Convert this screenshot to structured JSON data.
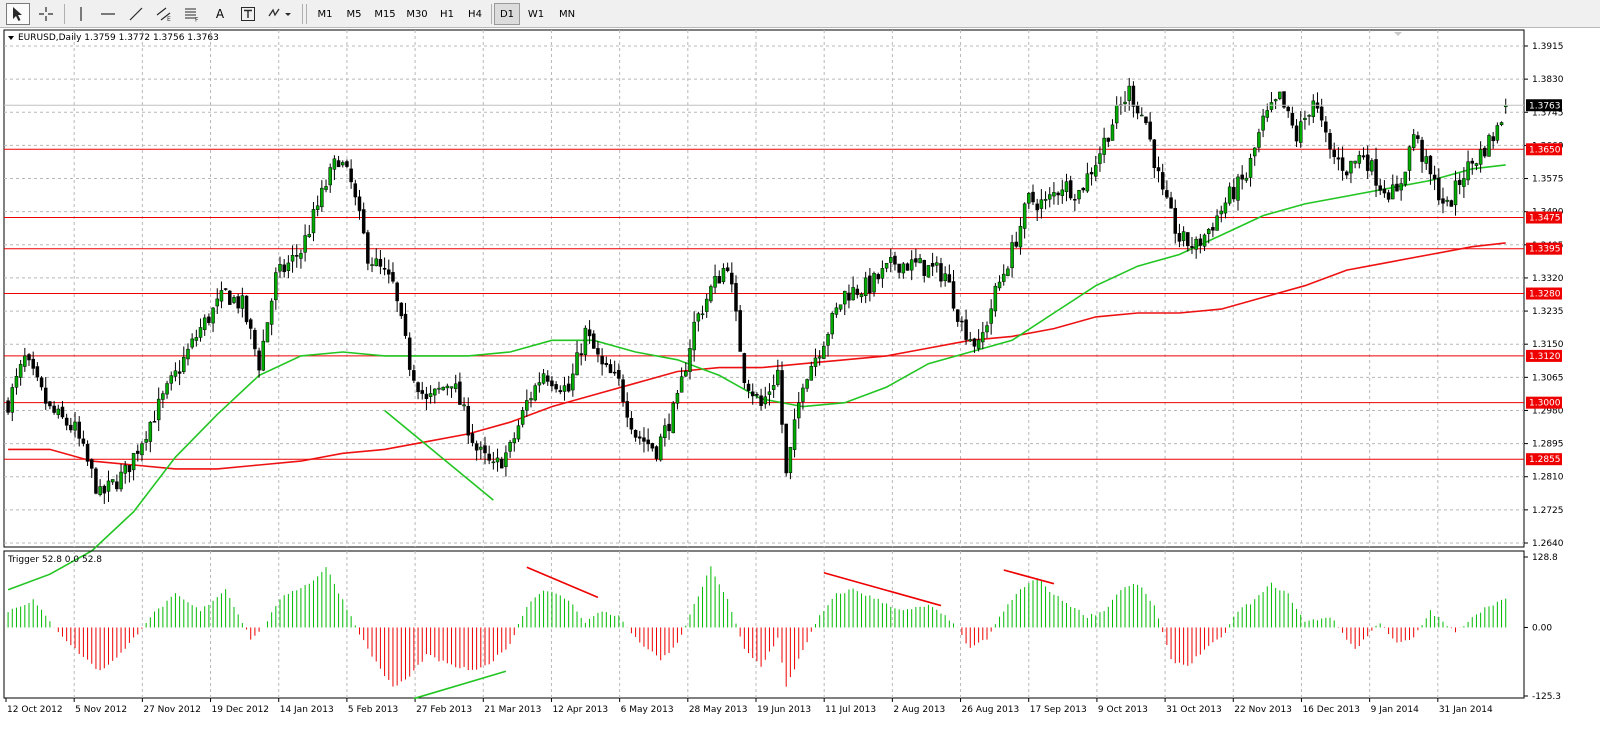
{
  "toolbar": {
    "tools": [
      {
        "name": "cursor-tool",
        "icon": "arrow-cursor-icon"
      },
      {
        "name": "crosshair-tool",
        "icon": "crosshair-icon"
      },
      {
        "name": "vertical-line-tool",
        "icon": "vertical-line-icon"
      },
      {
        "name": "horizontal-line-tool",
        "icon": "horizontal-line-icon"
      },
      {
        "name": "trendline-tool",
        "icon": "trendline-icon"
      },
      {
        "name": "equidistant-channel-tool",
        "icon": "channel-icon"
      },
      {
        "name": "fibonacci-tool",
        "icon": "fibonacci-icon"
      },
      {
        "name": "text-tool",
        "icon": "text-icon",
        "label": "A"
      },
      {
        "name": "text-label-tool",
        "icon": "text-label-icon"
      },
      {
        "name": "arrows-tool",
        "icon": "arrows-dropdown-icon"
      }
    ],
    "timeframes": [
      "M1",
      "M5",
      "M15",
      "M30",
      "H1",
      "H4",
      "D1",
      "W1",
      "MN"
    ],
    "active_timeframe": "D1"
  },
  "chart_data": [
    {
      "type": "candlestick",
      "symbol_info": "EURUSD,Daily  1.3759 1.3772 1.3756 1.3763",
      "ylim": [
        1.264,
        1.3915
      ],
      "y_ticks": [
        "1.3915",
        "1.3830",
        "1.3745",
        "1.3660",
        "1.3575",
        "1.3490",
        "1.3405",
        "1.3320",
        "1.3235",
        "1.3150",
        "1.3065",
        "1.2980",
        "1.2895",
        "1.2810",
        "1.2725",
        "1.2640"
      ],
      "x_ticks": [
        "12 Oct 2012",
        "5 Nov 2012",
        "27 Nov 2012",
        "19 Dec 2012",
        "14 Jan 2013",
        "5 Feb 2013",
        "27 Feb 2013",
        "21 Mar 2013",
        "12 Apr 2013",
        "6 May 2013",
        "28 May 2013",
        "19 Jun 2013",
        "11 Jul 2013",
        "2 Aug 2013",
        "26 Aug 2013",
        "17 Sep 2013",
        "9 Oct 2013",
        "31 Oct 2013",
        "22 Nov 2013",
        "16 Dec 2013",
        "9 Jan 2014",
        "31 Jan 2014"
      ],
      "current_price": "1.3763",
      "horizontal_levels": [
        "1.3650",
        "1.3475",
        "1.3395",
        "1.3280",
        "1.3120",
        "1.3000",
        "1.2855"
      ],
      "level_color": "#ee0000",
      "bull_color": "#00aa00",
      "bear_color": "#000000",
      "price_anchors": [
        [
          0,
          1.3
        ],
        [
          4,
          1.311
        ],
        [
          10,
          1.298
        ],
        [
          16,
          1.293
        ],
        [
          22,
          1.276
        ],
        [
          28,
          1.282
        ],
        [
          34,
          1.295
        ],
        [
          40,
          1.307
        ],
        [
          46,
          1.319
        ],
        [
          52,
          1.328
        ],
        [
          56,
          1.325
        ],
        [
          60,
          1.31
        ],
        [
          64,
          1.332
        ],
        [
          70,
          1.339
        ],
        [
          76,
          1.356
        ],
        [
          79,
          1.363
        ],
        [
          82,
          1.356
        ],
        [
          86,
          1.338
        ],
        [
          92,
          1.33
        ],
        [
          96,
          1.31
        ],
        [
          100,
          1.3
        ],
        [
          106,
          1.306
        ],
        [
          112,
          1.288
        ],
        [
          116,
          1.283
        ],
        [
          120,
          1.288
        ],
        [
          124,
          1.3
        ],
        [
          128,
          1.308
        ],
        [
          134,
          1.303
        ],
        [
          138,
          1.318
        ],
        [
          142,
          1.309
        ],
        [
          146,
          1.305
        ],
        [
          150,
          1.292
        ],
        [
          155,
          1.288
        ],
        [
          160,
          1.3
        ],
        [
          164,
          1.32
        ],
        [
          168,
          1.329
        ],
        [
          172,
          1.336
        ],
        [
          176,
          1.307
        ],
        [
          180,
          1.299
        ],
        [
          184,
          1.308
        ],
        [
          186,
          1.281
        ],
        [
          190,
          1.306
        ],
        [
          194,
          1.314
        ],
        [
          200,
          1.328
        ],
        [
          206,
          1.33
        ],
        [
          212,
          1.336
        ],
        [
          218,
          1.335
        ],
        [
          224,
          1.333
        ],
        [
          228,
          1.32
        ],
        [
          232,
          1.314
        ],
        [
          236,
          1.328
        ],
        [
          240,
          1.339
        ],
        [
          244,
          1.352
        ],
        [
          248,
          1.351
        ],
        [
          252,
          1.356
        ],
        [
          256,
          1.354
        ],
        [
          260,
          1.362
        ],
        [
          264,
          1.372
        ],
        [
          268,
          1.38
        ],
        [
          272,
          1.372
        ],
        [
          276,
          1.353
        ],
        [
          280,
          1.342
        ],
        [
          284,
          1.34
        ],
        [
          288,
          1.346
        ],
        [
          292,
          1.353
        ],
        [
          296,
          1.358
        ],
        [
          300,
          1.372
        ],
        [
          304,
          1.378
        ],
        [
          308,
          1.368
        ],
        [
          312,
          1.378
        ],
        [
          316,
          1.364
        ],
        [
          320,
          1.36
        ],
        [
          324,
          1.364
        ],
        [
          328,
          1.356
        ],
        [
          332,
          1.353
        ],
        [
          336,
          1.369
        ],
        [
          340,
          1.358
        ],
        [
          344,
          1.35
        ],
        [
          348,
          1.359
        ],
        [
          352,
          1.364
        ],
        [
          356,
          1.37
        ],
        [
          358,
          1.3763
        ]
      ],
      "ma_fast": {
        "color": "#22c522",
        "points": [
          [
            0,
            1.252
          ],
          [
            10,
            1.256
          ],
          [
            20,
            1.262
          ],
          [
            30,
            1.272
          ],
          [
            40,
            1.286
          ],
          [
            50,
            1.297
          ],
          [
            60,
            1.307
          ],
          [
            70,
            1.312
          ],
          [
            80,
            1.313
          ],
          [
            90,
            1.312
          ],
          [
            100,
            1.312
          ],
          [
            110,
            1.312
          ],
          [
            120,
            1.313
          ],
          [
            130,
            1.316
          ],
          [
            140,
            1.316
          ],
          [
            150,
            1.313
          ],
          [
            160,
            1.311
          ],
          [
            170,
            1.307
          ],
          [
            180,
            1.301
          ],
          [
            190,
            1.299
          ],
          [
            200,
            1.3
          ],
          [
            210,
            1.304
          ],
          [
            220,
            1.31
          ],
          [
            230,
            1.313
          ],
          [
            240,
            1.316
          ],
          [
            250,
            1.323
          ],
          [
            260,
            1.33
          ],
          [
            270,
            1.335
          ],
          [
            280,
            1.338
          ],
          [
            290,
            1.343
          ],
          [
            300,
            1.348
          ],
          [
            310,
            1.351
          ],
          [
            320,
            1.353
          ],
          [
            330,
            1.355
          ],
          [
            340,
            1.357
          ],
          [
            350,
            1.36
          ],
          [
            358,
            1.361
          ]
        ]
      },
      "ma_slow": {
        "color": "#ee1111",
        "points": [
          [
            0,
            1.288
          ],
          [
            10,
            1.288
          ],
          [
            20,
            1.285
          ],
          [
            30,
            1.284
          ],
          [
            40,
            1.283
          ],
          [
            50,
            1.283
          ],
          [
            60,
            1.284
          ],
          [
            70,
            1.285
          ],
          [
            80,
            1.287
          ],
          [
            90,
            1.288
          ],
          [
            100,
            1.29
          ],
          [
            110,
            1.292
          ],
          [
            120,
            1.295
          ],
          [
            130,
            1.299
          ],
          [
            140,
            1.302
          ],
          [
            150,
            1.305
          ],
          [
            160,
            1.308
          ],
          [
            170,
            1.309
          ],
          [
            180,
            1.309
          ],
          [
            190,
            1.31
          ],
          [
            200,
            1.311
          ],
          [
            210,
            1.312
          ],
          [
            220,
            1.314
          ],
          [
            230,
            1.316
          ],
          [
            240,
            1.317
          ],
          [
            250,
            1.319
          ],
          [
            260,
            1.322
          ],
          [
            270,
            1.323
          ],
          [
            280,
            1.323
          ],
          [
            290,
            1.324
          ],
          [
            300,
            1.327
          ],
          [
            310,
            1.33
          ],
          [
            320,
            1.334
          ],
          [
            330,
            1.336
          ],
          [
            340,
            1.338
          ],
          [
            350,
            1.34
          ],
          [
            358,
            1.341
          ]
        ]
      },
      "trendlines": [
        {
          "color": "#22c522",
          "points": [
            [
              90,
              1.298
            ],
            [
              116,
              1.275
            ]
          ]
        }
      ]
    },
    {
      "type": "histogram",
      "indicator_info": "Trigger 52.8 0.0 52.8",
      "ylim": [
        -125.3,
        128.8
      ],
      "y_ticks": [
        "128.8",
        "0.00",
        "-125.3"
      ],
      "up_color": "#00bb00",
      "down_color": "#ee0000",
      "value_anchors": [
        [
          0,
          30
        ],
        [
          6,
          50
        ],
        [
          10,
          10
        ],
        [
          16,
          -40
        ],
        [
          22,
          -80
        ],
        [
          28,
          -40
        ],
        [
          34,
          20
        ],
        [
          40,
          60
        ],
        [
          46,
          30
        ],
        [
          52,
          70
        ],
        [
          58,
          -20
        ],
        [
          60,
          -10
        ],
        [
          66,
          60
        ],
        [
          72,
          80
        ],
        [
          76,
          110
        ],
        [
          80,
          50
        ],
        [
          86,
          -40
        ],
        [
          92,
          -110
        ],
        [
          96,
          -90
        ],
        [
          100,
          -50
        ],
        [
          106,
          -70
        ],
        [
          112,
          -80
        ],
        [
          116,
          -60
        ],
        [
          120,
          -30
        ],
        [
          124,
          40
        ],
        [
          128,
          70
        ],
        [
          134,
          50
        ],
        [
          138,
          10
        ],
        [
          142,
          30
        ],
        [
          146,
          20
        ],
        [
          150,
          -20
        ],
        [
          156,
          -60
        ],
        [
          160,
          -30
        ],
        [
          164,
          40
        ],
        [
          168,
          110
        ],
        [
          172,
          50
        ],
        [
          176,
          -40
        ],
        [
          180,
          -70
        ],
        [
          184,
          -20
        ],
        [
          186,
          -110
        ],
        [
          190,
          -40
        ],
        [
          194,
          20
        ],
        [
          198,
          60
        ],
        [
          202,
          70
        ],
        [
          208,
          50
        ],
        [
          214,
          30
        ],
        [
          220,
          40
        ],
        [
          226,
          10
        ],
        [
          230,
          -40
        ],
        [
          234,
          -20
        ],
        [
          238,
          30
        ],
        [
          242,
          70
        ],
        [
          246,
          90
        ],
        [
          250,
          60
        ],
        [
          254,
          40
        ],
        [
          258,
          20
        ],
        [
          262,
          30
        ],
        [
          266,
          70
        ],
        [
          270,
          80
        ],
        [
          274,
          40
        ],
        [
          278,
          -60
        ],
        [
          282,
          -70
        ],
        [
          286,
          -40
        ],
        [
          290,
          -20
        ],
        [
          294,
          30
        ],
        [
          298,
          50
        ],
        [
          302,
          80
        ],
        [
          306,
          60
        ],
        [
          310,
          10
        ],
        [
          316,
          20
        ],
        [
          322,
          -40
        ],
        [
          328,
          10
        ],
        [
          332,
          -30
        ],
        [
          336,
          -20
        ],
        [
          340,
          30
        ],
        [
          346,
          -10
        ],
        [
          350,
          20
        ],
        [
          354,
          40
        ],
        [
          358,
          52.8
        ]
      ],
      "trendlines": [
        {
          "color": "#ee0000",
          "points": [
            [
              124,
              110
            ],
            [
              141,
              55
            ]
          ]
        },
        {
          "color": "#ee0000",
          "points": [
            [
              195,
              100
            ],
            [
              223,
              40
            ]
          ]
        },
        {
          "color": "#ee0000",
          "points": [
            [
              238,
              105
            ],
            [
              250,
              80
            ]
          ]
        },
        {
          "color": "#22c522",
          "points": [
            [
              97,
              -130
            ],
            [
              119,
              -80
            ]
          ]
        }
      ]
    }
  ]
}
